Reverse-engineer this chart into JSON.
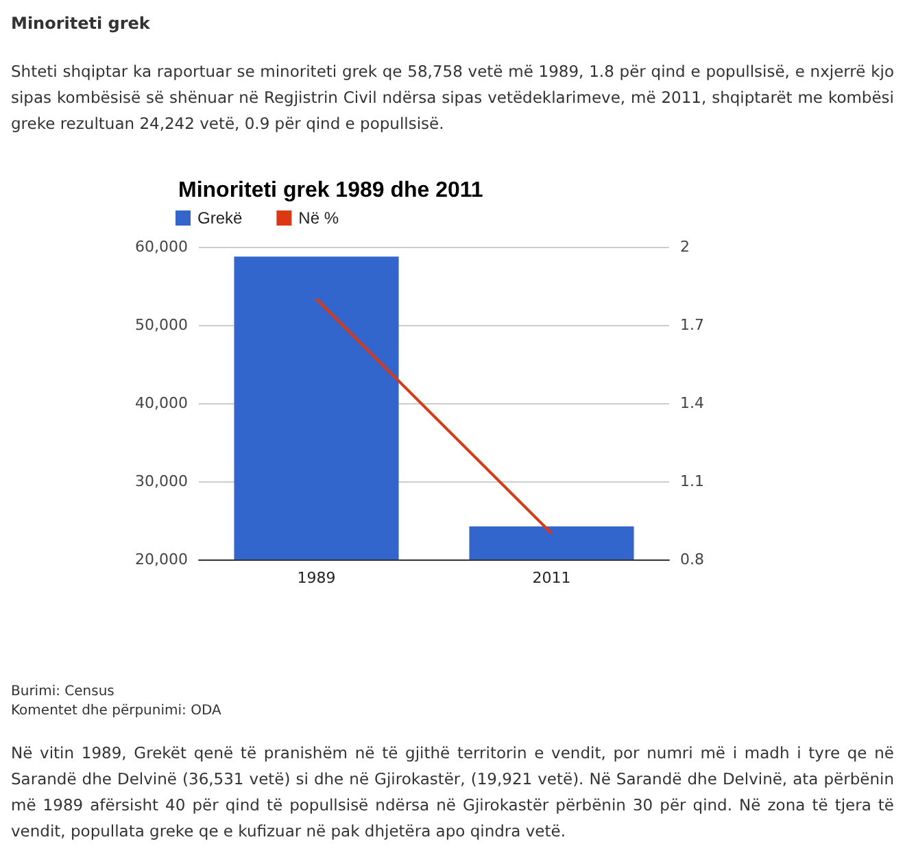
{
  "chart_data": {
    "type": "bar",
    "title": "Minoriteti grek 1989 dhe 2011",
    "categories": [
      "1989",
      "2011"
    ],
    "series": [
      {
        "name": "Grekë",
        "color": "#3366cc",
        "values": [
          58758,
          24242
        ]
      },
      {
        "name": "Në %",
        "type": "line",
        "axis": "y2",
        "color": "#dc3912",
        "values": [
          1.8,
          0.9
        ]
      }
    ],
    "ylim": [
      20000,
      60000
    ],
    "yticks": [
      {
        "value": 20000,
        "label": "20,000"
      },
      {
        "value": 30000,
        "label": "30,000"
      },
      {
        "value": 40000,
        "label": "40,000"
      },
      {
        "value": 50000,
        "label": "50,000"
      },
      {
        "value": 60000,
        "label": "60,000"
      }
    ],
    "y2lim": [
      0.8,
      2
    ],
    "y2ticks": [
      0.8,
      1.1,
      1.4,
      1.7,
      2
    ],
    "grid": "y",
    "legend": "top left",
    "annotations": [
      "Minoriteti grek",
      "Shteti shqiptar ka raportuar se minoriteti grek qe 58,758 vetë më 1989, 1.8 për qind e popullsisë, e nxjerrë kjo sipas kombësisë së shënuar në Regjistrin Civil ndërsa sipas vetëdeklarimeve, më 2011, shqiptarët me kombësi greke rezultuan 24,242 vetë, 0.9 për qind e popullsisë.",
      "Burimi: Census",
      "Komentet dhe përpunimi: ODA",
      "Në vitin 1989, Grekët qenë të pranishëm në të gjithë territorin e vendit, por numri më i madh i tyre qe në Sarandë dhe Delvinë (36,531 vetë) si dhe në Gjirokastër, (19,921 vetë). Në Sarandë dhe Delvinë, ata përbënin më 1989 afërsisht 40 për qind të popullsisë ndërsa në Gjirokastër përbënin 30 për qind. Në zona të tjera të vendit, popullata greke qe e kufizuar në pak dhjetëra apo qindra vetë."
    ]
  }
}
